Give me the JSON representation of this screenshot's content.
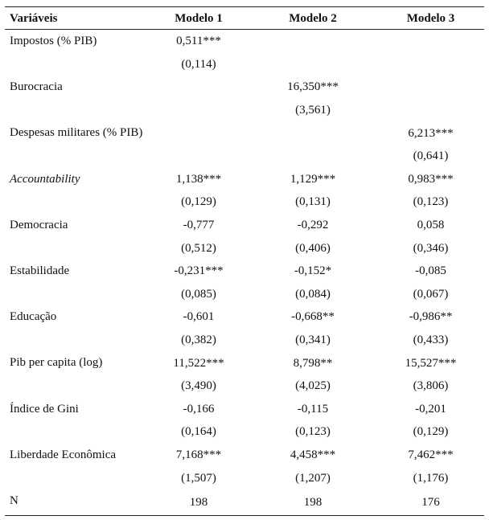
{
  "table": {
    "header": [
      "Variáveis",
      "Modelo 1",
      "Modelo 2",
      "Modelo 3"
    ],
    "rows": [
      {
        "label": "Impostos (% PIB)",
        "coef": [
          "0,511***",
          null,
          null
        ],
        "se": [
          "(0,114)",
          null,
          null
        ]
      },
      {
        "label": "Burocracia",
        "coef": [
          null,
          "16,350***",
          null
        ],
        "se": [
          null,
          "(3,561)",
          null
        ]
      },
      {
        "label": "Despesas militares (% PIB)",
        "coef": [
          null,
          null,
          "6,213***"
        ],
        "se": [
          null,
          null,
          "(0,641)"
        ]
      },
      {
        "label": "Accountability",
        "italic": true,
        "coef": [
          "1,138***",
          "1,129***",
          "0,983***"
        ],
        "se": [
          "(0,129)",
          "(0,131)",
          "(0,123)"
        ]
      },
      {
        "label": "Democracia",
        "coef": [
          "-0,777",
          "-0,292",
          "0,058"
        ],
        "se": [
          "(0,512)",
          "(0,406)",
          "(0,346)"
        ]
      },
      {
        "label": "Estabilidade",
        "coef": [
          "-0,231***",
          "-0,152*",
          "-0,085"
        ],
        "se": [
          "(0,085)",
          "(0,084)",
          "(0,067)"
        ]
      },
      {
        "label": "Educação",
        "coef": [
          "-0,601",
          "-0,668**",
          "-0,986**"
        ],
        "se": [
          "(0,382)",
          "(0,341)",
          "(0,433)"
        ]
      },
      {
        "label": "Pib per capita (log)",
        "coef": [
          "11,522***",
          "8,798**",
          "15,527***"
        ],
        "se": [
          "(3,490)",
          "(4,025)",
          "(3,806)"
        ]
      },
      {
        "label": "Índice de Gini",
        "coef": [
          "-0,166",
          "-0,115",
          "-0,201"
        ],
        "se": [
          "(0,164)",
          "(0,123)",
          "(0,129)"
        ]
      },
      {
        "label": "Liberdade Econômica",
        "coef": [
          "7,168***",
          "4,458***",
          "7,462***"
        ],
        "se": [
          "(1,507)",
          "(1,207)",
          "(1,176)"
        ]
      },
      {
        "label": "N",
        "coef": [
          "198",
          "198",
          "176"
        ]
      }
    ]
  }
}
